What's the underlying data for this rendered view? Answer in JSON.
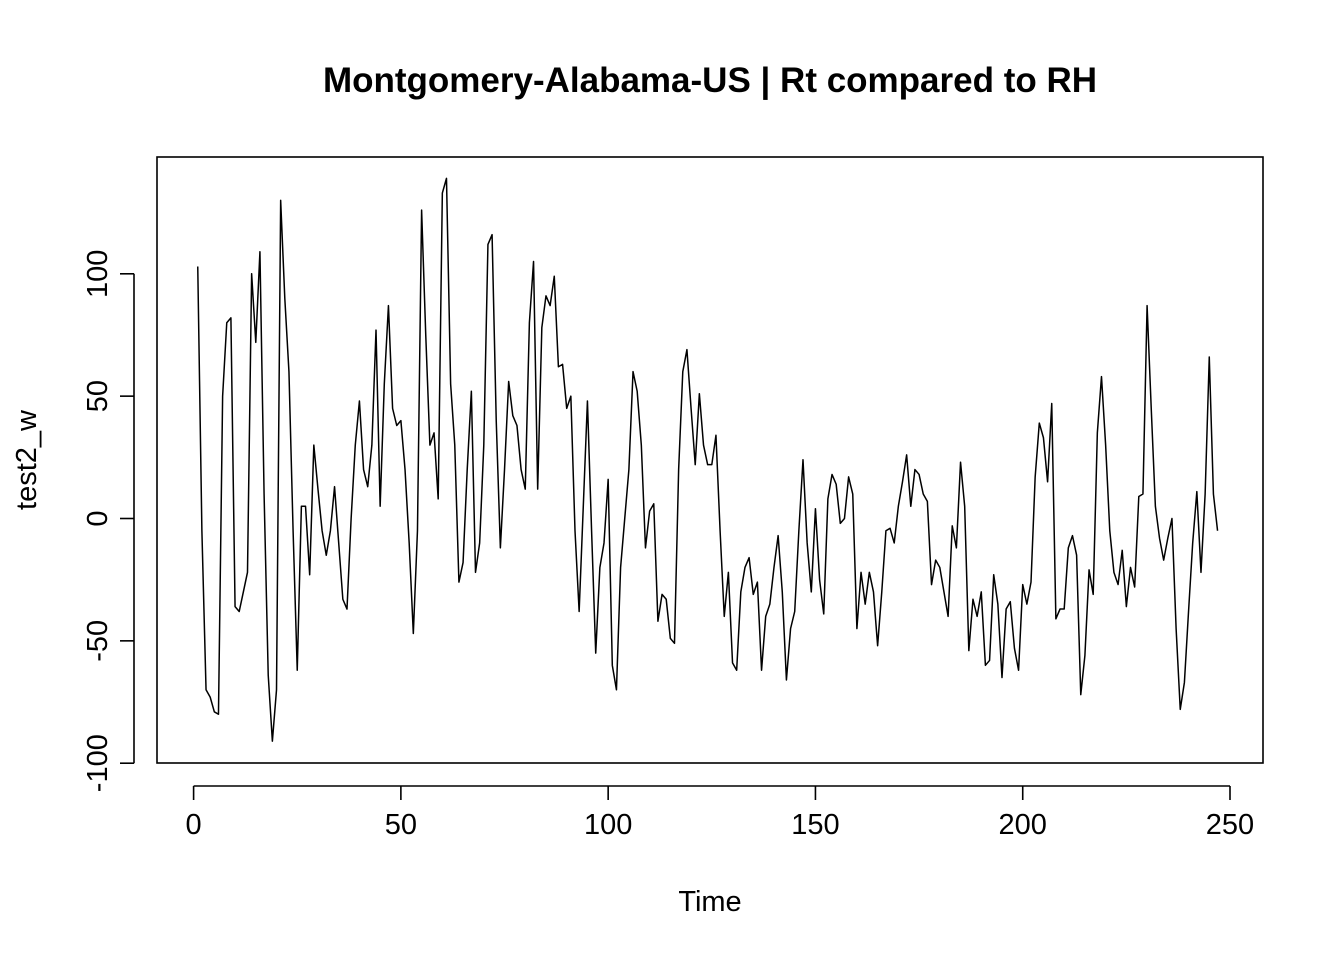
{
  "chart_data": {
    "type": "line",
    "title": "Montgomery-Alabama-US | Rt compared to RH",
    "xlabel": "Time",
    "ylabel": "test2_w",
    "xlim": [
      0,
      250
    ],
    "ylim": [
      -100,
      140
    ],
    "x_ticks": [
      0,
      50,
      100,
      150,
      200,
      250
    ],
    "y_ticks": [
      -100,
      -50,
      0,
      50,
      100
    ],
    "x_tick_labels": [
      "0",
      "50",
      "100",
      "150",
      "200",
      "250"
    ],
    "y_tick_labels": [
      "-100",
      "-50",
      "0",
      "50",
      "100"
    ],
    "grid": false,
    "series": [
      {
        "x_start": 1,
        "values": [
          103,
          -5,
          -70,
          -73,
          -79,
          -80,
          50,
          80,
          82,
          -36,
          -38,
          -30,
          -22,
          100,
          72,
          109,
          10,
          -64,
          -91,
          -70,
          130,
          90,
          60,
          -5,
          -62,
          5,
          5,
          -23,
          30,
          12,
          -5,
          -15,
          -5,
          13,
          -10,
          -33,
          -37,
          0,
          30,
          48,
          20,
          13,
          30,
          77,
          5,
          55,
          87,
          45,
          38,
          40,
          20,
          -10,
          -47,
          -5,
          126,
          75,
          30,
          35,
          8,
          133,
          139,
          55,
          30,
          -26,
          -18,
          20,
          52,
          -22,
          -10,
          30,
          112,
          116,
          40,
          -12,
          20,
          56,
          42,
          38,
          20,
          12,
          80,
          105,
          12,
          78,
          91,
          87,
          99,
          62,
          63,
          45,
          50,
          -5,
          -38,
          5,
          48,
          -5,
          -55,
          -20,
          -10,
          16,
          -60,
          -70,
          -20,
          0,
          20,
          60,
          52,
          30,
          -12,
          3,
          6,
          -42,
          -31,
          -33,
          -49,
          -51,
          20,
          60,
          69,
          45,
          22,
          51,
          30,
          22,
          22,
          34,
          -5,
          -40,
          -22,
          -59,
          -62,
          -30,
          -20,
          -16,
          -31,
          -26,
          -62,
          -40,
          -35,
          -20,
          -7,
          -30,
          -66,
          -45,
          -38,
          -5,
          24,
          -10,
          -30,
          4,
          -25,
          -39,
          8,
          18,
          14,
          -2,
          0,
          17,
          10,
          -45,
          -22,
          -35,
          -22,
          -30,
          -52,
          -30,
          -5,
          -4,
          -10,
          5,
          15,
          26,
          5,
          20,
          18,
          10,
          7,
          -27,
          -17,
          -20,
          -30,
          -40,
          -3,
          -12,
          23,
          5,
          -54,
          -33,
          -40,
          -30,
          -60,
          -58,
          -23,
          -35,
          -65,
          -37,
          -34,
          -53,
          -62,
          -27,
          -35,
          -26,
          17,
          39,
          33,
          15,
          47,
          -41,
          -37,
          -37,
          -12,
          -7,
          -15,
          -72,
          -56,
          -21,
          -31,
          35,
          58,
          30,
          -5,
          -22,
          -27,
          -13,
          -36,
          -20,
          -28,
          9,
          10,
          87,
          45,
          5,
          -8,
          -17,
          -8,
          0,
          -45,
          -78,
          -67,
          -38,
          -10,
          11,
          -22,
          10,
          66,
          10,
          -5
        ]
      }
    ]
  }
}
